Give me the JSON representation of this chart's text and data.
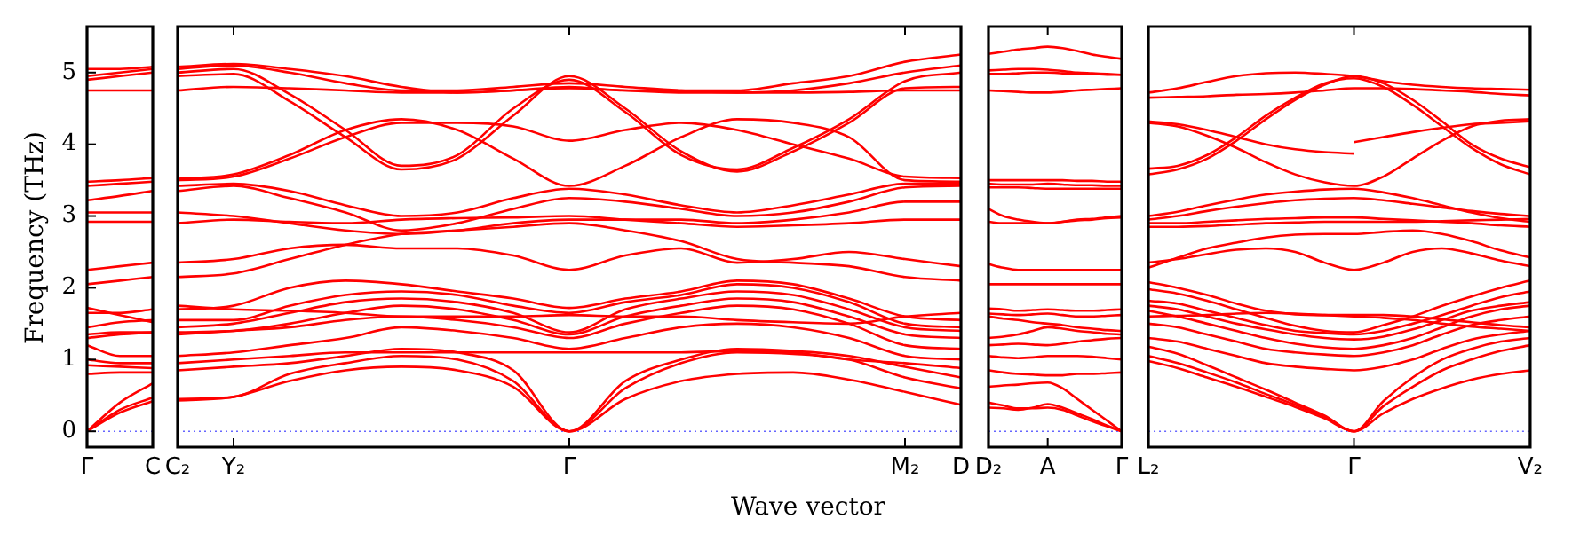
{
  "chart_data": [
    {
      "type": "line",
      "ylabel": "Frequency (THz)",
      "categories": [
        "Γ",
        null,
        "C"
      ],
      "ylim": [
        -0.22,
        5.64
      ],
      "yticks": [
        0,
        1,
        2,
        3,
        4,
        5
      ],
      "ref_lines": [
        {
          "axis": "y",
          "value": 0,
          "color": "#6666ff",
          "line_style": "dotted"
        }
      ],
      "series": [
        {
          "color": "#ff0000",
          "values": [
            0,
            0.3,
            0.47
          ]
        },
        {
          "color": "#ff0000",
          "values": [
            0,
            0.26,
            0.42
          ]
        },
        {
          "color": "#ff0000",
          "values": [
            0,
            0.4,
            0.67
          ]
        },
        {
          "color": "#ff0000",
          "values": [
            0.8,
            0.82,
            0.82
          ]
        },
        {
          "color": "#ff0000",
          "values": [
            0.92,
            0.9,
            0.88
          ]
        },
        {
          "color": "#ff0000",
          "values": [
            1.0,
            0.95,
            0.95
          ]
        },
        {
          "color": "#ff0000",
          "values": [
            1.2,
            1.05,
            1.05
          ]
        },
        {
          "color": "#ff0000",
          "values": [
            1.3,
            1.35,
            1.38
          ]
        },
        {
          "color": "#ff0000",
          "values": [
            1.35,
            1.38,
            1.38
          ]
        },
        {
          "color": "#ff0000",
          "values": [
            1.45,
            1.52,
            1.55
          ]
        },
        {
          "color": "#ff0000",
          "values": [
            1.72,
            1.62,
            1.52
          ]
        },
        {
          "color": "#ff0000",
          "values": [
            1.65,
            1.65,
            1.7
          ]
        },
        {
          "color": "#ff0000",
          "values": [
            2.05,
            2.1,
            2.15
          ]
        },
        {
          "color": "#ff0000",
          "values": [
            2.25,
            2.3,
            2.35
          ]
        },
        {
          "color": "#ff0000",
          "values": [
            2.92,
            2.92,
            2.92
          ]
        },
        {
          "color": "#ff0000",
          "values": [
            3.05,
            3.05,
            3.05
          ]
        },
        {
          "color": "#ff0000",
          "values": [
            3.22,
            3.28,
            3.35
          ]
        },
        {
          "color": "#ff0000",
          "values": [
            3.42,
            3.45,
            3.48
          ]
        },
        {
          "color": "#ff0000",
          "values": [
            3.48,
            3.5,
            3.53
          ]
        },
        {
          "color": "#ff0000",
          "values": [
            4.75,
            4.75,
            4.75
          ]
        },
        {
          "color": "#ff0000",
          "values": [
            4.9,
            4.95,
            5.0
          ]
        },
        {
          "color": "#ff0000",
          "values": [
            4.95,
            5.0,
            5.05
          ]
        },
        {
          "color": "#ff0000",
          "values": [
            5.05,
            5.05,
            5.08
          ]
        }
      ]
    },
    {
      "type": "line",
      "xlabel": "Wave vector",
      "categories": [
        "C₂",
        "Y₂",
        null,
        null,
        null,
        null,
        null,
        "Γ",
        null,
        null,
        null,
        null,
        null,
        "M₂",
        "D"
      ],
      "ylim": [
        -0.22,
        5.64
      ],
      "yticks": [
        0,
        1,
        2,
        3,
        4,
        5
      ],
      "tick_labels": "x",
      "ref_lines": [
        {
          "axis": "y",
          "value": 0,
          "color": "#6666ff",
          "line_style": "dotted"
        }
      ],
      "series": [
        {
          "color": "#ff0000",
          "values": [
            0.43,
            0.48,
            0.7,
            0.85,
            0.9,
            0.85,
            0.62,
            0,
            0.45,
            0.7,
            0.8,
            0.82,
            0.72,
            0.55,
            0.37
          ]
        },
        {
          "color": "#ff0000",
          "values": [
            0.45,
            0.48,
            0.8,
            0.95,
            1.05,
            1.0,
            0.7,
            0,
            0.6,
            0.95,
            1.1,
            1.08,
            1.0,
            0.75,
            0.6
          ]
        },
        {
          "color": "#ff0000",
          "values": [
            0.85,
            0.9,
            0.95,
            1.05,
            1.15,
            1.1,
            0.85,
            0,
            0.7,
            1.0,
            1.15,
            1.12,
            1.05,
            0.9,
            0.75
          ]
        },
        {
          "color": "#ff0000",
          "values": [
            0.95,
            1.0,
            1.05,
            1.1,
            1.1,
            1.1,
            1.1,
            1.1,
            1.1,
            1.1,
            1.12,
            1.1,
            1.0,
            0.95,
            0.88
          ]
        },
        {
          "color": "#ff0000",
          "values": [
            1.05,
            1.1,
            1.2,
            1.3,
            1.45,
            1.4,
            1.3,
            1.15,
            1.3,
            1.45,
            1.5,
            1.45,
            1.3,
            1.05,
            1.0
          ]
        },
        {
          "color": "#ff0000",
          "values": [
            1.35,
            1.4,
            1.45,
            1.55,
            1.6,
            1.55,
            1.45,
            1.3,
            1.5,
            1.65,
            1.75,
            1.7,
            1.5,
            1.2,
            1.15
          ]
        },
        {
          "color": "#ff0000",
          "values": [
            1.38,
            1.4,
            1.5,
            1.65,
            1.75,
            1.7,
            1.55,
            1.35,
            1.6,
            1.75,
            1.85,
            1.8,
            1.6,
            1.35,
            1.3
          ]
        },
        {
          "color": "#ff0000",
          "values": [
            1.45,
            1.5,
            1.65,
            1.8,
            1.85,
            1.8,
            1.65,
            1.38,
            1.7,
            1.85,
            1.95,
            1.9,
            1.7,
            1.45,
            1.4
          ]
        },
        {
          "color": "#ff0000",
          "values": [
            1.55,
            1.55,
            1.75,
            1.9,
            1.95,
            1.9,
            1.75,
            1.65,
            1.8,
            1.9,
            2.05,
            2.0,
            1.8,
            1.5,
            1.45
          ]
        },
        {
          "color": "#ff0000",
          "values": [
            1.7,
            1.75,
            2.0,
            2.1,
            2.05,
            1.95,
            1.85,
            1.72,
            1.85,
            1.95,
            2.1,
            2.05,
            1.85,
            1.6,
            1.55
          ]
        },
        {
          "color": "#ff0000",
          "values": [
            1.75,
            1.7,
            1.68,
            1.65,
            1.6,
            1.6,
            1.6,
            1.62,
            1.6,
            1.6,
            1.55,
            1.52,
            1.5,
            1.6,
            1.65
          ]
        },
        {
          "color": "#ff0000",
          "values": [
            2.15,
            2.2,
            2.4,
            2.6,
            2.75,
            2.8,
            2.85,
            2.9,
            2.8,
            2.65,
            2.4,
            2.35,
            2.3,
            2.15,
            2.1
          ]
        },
        {
          "color": "#ff0000",
          "values": [
            2.35,
            2.4,
            2.55,
            2.6,
            2.55,
            2.55,
            2.45,
            2.25,
            2.45,
            2.55,
            2.35,
            2.4,
            2.5,
            2.4,
            2.3
          ]
        },
        {
          "color": "#ff0000",
          "values": [
            2.9,
            2.95,
            2.92,
            2.9,
            2.95,
            2.97,
            2.98,
            3.0,
            2.95,
            2.9,
            2.85,
            2.87,
            2.9,
            2.95,
            2.95
          ]
        },
        {
          "color": "#ff0000",
          "values": [
            3.05,
            3.0,
            2.9,
            2.8,
            2.75,
            2.8,
            2.9,
            2.95,
            2.95,
            2.95,
            2.9,
            2.95,
            3.05,
            3.2,
            3.2
          ]
        },
        {
          "color": "#ff0000",
          "values": [
            3.35,
            3.42,
            3.25,
            3.05,
            2.8,
            2.9,
            3.1,
            3.25,
            3.2,
            3.1,
            3.0,
            3.05,
            3.2,
            3.4,
            3.42
          ]
        },
        {
          "color": "#ff0000",
          "values": [
            3.42,
            3.45,
            3.35,
            3.15,
            3.0,
            3.05,
            3.25,
            3.38,
            3.3,
            3.15,
            3.05,
            3.15,
            3.3,
            3.45,
            3.45
          ]
        },
        {
          "color": "#ff0000",
          "values": [
            3.5,
            3.55,
            3.8,
            4.1,
            4.3,
            4.3,
            4.25,
            4.05,
            4.2,
            4.3,
            4.2,
            4.0,
            3.8,
            3.55,
            3.53
          ]
        },
        {
          "color": "#ff0000",
          "values": [
            3.52,
            3.58,
            3.85,
            4.2,
            4.35,
            4.2,
            3.8,
            3.42,
            3.7,
            4.1,
            4.35,
            4.3,
            4.1,
            3.5,
            3.48
          ]
        },
        {
          "color": "#ff0000",
          "values": [
            4.95,
            4.98,
            4.6,
            4.1,
            3.65,
            3.8,
            4.4,
            4.95,
            4.5,
            3.9,
            3.62,
            3.9,
            4.3,
            4.78,
            4.8
          ]
        },
        {
          "color": "#ff0000",
          "values": [
            5.0,
            5.05,
            4.7,
            4.2,
            3.7,
            3.85,
            4.5,
            4.9,
            4.45,
            3.85,
            3.65,
            3.95,
            4.35,
            4.88,
            5.0
          ]
        },
        {
          "color": "#ff0000",
          "values": [
            5.05,
            5.1,
            5.0,
            4.85,
            4.75,
            4.75,
            4.8,
            4.85,
            4.8,
            4.75,
            4.72,
            4.75,
            4.85,
            5.0,
            5.1
          ]
        },
        {
          "color": "#ff0000",
          "values": [
            5.08,
            5.12,
            5.05,
            4.95,
            4.8,
            4.72,
            4.75,
            4.8,
            4.75,
            4.75,
            4.75,
            4.85,
            4.95,
            5.15,
            5.25
          ]
        },
        {
          "color": "#ff0000",
          "values": [
            4.75,
            4.8,
            4.78,
            4.75,
            4.72,
            4.72,
            4.75,
            4.78,
            4.75,
            4.72,
            4.72,
            4.72,
            4.73,
            4.75,
            4.75
          ]
        }
      ]
    },
    {
      "type": "line",
      "categories": [
        "D₂",
        null,
        null,
        null,
        "A",
        null,
        null,
        null,
        null,
        "Γ"
      ],
      "ylim": [
        -0.22,
        5.64
      ],
      "yticks": [
        0,
        1,
        2,
        3,
        4,
        5
      ],
      "tick_labels": "x",
      "ref_lines": [
        {
          "axis": "y",
          "value": 0,
          "color": "#6666ff",
          "line_style": "dotted"
        }
      ],
      "series": [
        {
          "color": "#ff0000",
          "values": [
            0.33,
            0.32,
            0.3,
            0.33,
            0.38,
            0.33,
            0.25,
            0.17,
            0.08,
            0
          ]
        },
        {
          "color": "#ff0000",
          "values": [
            0.4,
            0.36,
            0.32,
            0.32,
            0.33,
            0.3,
            0.22,
            0.14,
            0.07,
            0
          ]
        },
        {
          "color": "#ff0000",
          "values": [
            0.62,
            0.64,
            0.65,
            0.67,
            0.68,
            0.6,
            0.45,
            0.3,
            0.15,
            0
          ]
        },
        {
          "color": "#ff0000",
          "values": [
            0.85,
            0.82,
            0.8,
            0.79,
            0.78,
            0.78,
            0.8,
            0.8,
            0.81,
            0.82
          ]
        },
        {
          "color": "#ff0000",
          "values": [
            1.05,
            1.03,
            1.02,
            1.03,
            1.05,
            1.05,
            1.05,
            1.04,
            1.02,
            1.0
          ]
        },
        {
          "color": "#ff0000",
          "values": [
            1.2,
            1.21,
            1.22,
            1.21,
            1.2,
            1.22,
            1.25,
            1.27,
            1.29,
            1.3
          ]
        },
        {
          "color": "#ff0000",
          "values": [
            1.3,
            1.32,
            1.35,
            1.4,
            1.45,
            1.43,
            1.4,
            1.38,
            1.36,
            1.35
          ]
        },
        {
          "color": "#ff0000",
          "values": [
            1.6,
            1.57,
            1.55,
            1.52,
            1.5,
            1.48,
            1.45,
            1.43,
            1.41,
            1.4
          ]
        },
        {
          "color": "#ff0000",
          "values": [
            1.64,
            1.63,
            1.62,
            1.63,
            1.64,
            1.62,
            1.6,
            1.6,
            1.61,
            1.62
          ]
        },
        {
          "color": "#ff0000",
          "values": [
            1.71,
            1.7,
            1.68,
            1.69,
            1.7,
            1.69,
            1.68,
            1.68,
            1.69,
            1.7
          ]
        },
        {
          "color": "#ff0000",
          "values": [
            2.05,
            2.05,
            2.05,
            2.05,
            2.05,
            2.05,
            2.05,
            2.05,
            2.05,
            2.05
          ]
        },
        {
          "color": "#ff0000",
          "values": [
            2.33,
            2.28,
            2.25,
            2.25,
            2.25,
            2.25,
            2.25,
            2.25,
            2.25,
            2.25
          ]
        },
        {
          "color": "#ff0000",
          "values": [
            2.92,
            2.9,
            2.9,
            2.9,
            2.9,
            2.92,
            2.94,
            2.95,
            2.97,
            2.98
          ]
        },
        {
          "color": "#ff0000",
          "values": [
            3.1,
            3.0,
            2.95,
            2.92,
            2.9,
            2.92,
            2.95,
            2.96,
            2.98,
            3.0
          ]
        },
        {
          "color": "#ff0000",
          "values": [
            3.4,
            3.4,
            3.4,
            3.39,
            3.38,
            3.38,
            3.38,
            3.38,
            3.38,
            3.38
          ]
        },
        {
          "color": "#ff0000",
          "values": [
            3.45,
            3.44,
            3.44,
            3.44,
            3.45,
            3.44,
            3.43,
            3.43,
            3.42,
            3.42
          ]
        },
        {
          "color": "#ff0000",
          "values": [
            3.5,
            3.5,
            3.5,
            3.5,
            3.5,
            3.5,
            3.49,
            3.49,
            3.48,
            3.48
          ]
        },
        {
          "color": "#ff0000",
          "values": [
            4.75,
            4.74,
            4.73,
            4.72,
            4.72,
            4.73,
            4.75,
            4.76,
            4.77,
            4.78
          ]
        },
        {
          "color": "#ff0000",
          "values": [
            4.98,
            4.98,
            4.99,
            5.0,
            5.0,
            4.99,
            4.98,
            4.98,
            4.97,
            4.97
          ]
        },
        {
          "color": "#ff0000",
          "values": [
            5.03,
            5.04,
            5.05,
            5.05,
            5.04,
            5.02,
            5.0,
            4.99,
            4.98,
            4.97
          ]
        },
        {
          "color": "#ff0000",
          "values": [
            5.26,
            5.29,
            5.32,
            5.34,
            5.36,
            5.34,
            5.3,
            5.25,
            5.22,
            5.19
          ]
        }
      ]
    },
    {
      "type": "line",
      "categories": [
        "L₂",
        null,
        null,
        null,
        null,
        null,
        null,
        "Γ",
        null,
        null,
        null,
        null,
        null,
        "V₂"
      ],
      "ylim": [
        -0.22,
        5.64
      ],
      "yticks": [
        0,
        1,
        2,
        3,
        4,
        5
      ],
      "tick_labels": "x",
      "ref_lines": [
        {
          "axis": "y",
          "value": 0,
          "color": "#6666ff",
          "line_style": "dotted"
        }
      ],
      "series": [
        {
          "color": "#ff0000",
          "values": [
            0.98,
            0.88,
            0.75,
            0.62,
            0.48,
            0.34,
            0.18,
            0,
            0.25,
            0.45,
            0.6,
            0.72,
            0.8,
            0.85
          ]
        },
        {
          "color": "#ff0000",
          "values": [
            1.05,
            0.95,
            0.82,
            0.68,
            0.52,
            0.37,
            0.2,
            0,
            0.35,
            0.62,
            0.85,
            1.0,
            1.12,
            1.2
          ]
        },
        {
          "color": "#ff0000",
          "values": [
            1.18,
            1.08,
            0.92,
            0.75,
            0.58,
            0.4,
            0.22,
            0,
            0.42,
            0.75,
            1.0,
            1.15,
            1.25,
            1.3
          ]
        },
        {
          "color": "#ff0000",
          "values": [
            1.3,
            1.25,
            1.15,
            1.05,
            0.95,
            0.9,
            0.87,
            0.85,
            0.9,
            1.0,
            1.15,
            1.28,
            1.35,
            1.4
          ]
        },
        {
          "color": "#ff0000",
          "values": [
            1.5,
            1.45,
            1.35,
            1.25,
            1.15,
            1.1,
            1.07,
            1.05,
            1.1,
            1.2,
            1.35,
            1.48,
            1.55,
            1.6
          ]
        },
        {
          "color": "#ff0000",
          "values": [
            1.68,
            1.6,
            1.5,
            1.4,
            1.3,
            1.22,
            1.17,
            1.15,
            1.2,
            1.3,
            1.45,
            1.6,
            1.7,
            1.75
          ]
        },
        {
          "color": "#ff0000",
          "values": [
            1.75,
            1.7,
            1.6,
            1.5,
            1.42,
            1.35,
            1.3,
            1.28,
            1.32,
            1.42,
            1.55,
            1.68,
            1.75,
            1.8
          ]
        },
        {
          "color": "#ff0000",
          "values": [
            1.82,
            1.78,
            1.68,
            1.58,
            1.48,
            1.4,
            1.37,
            1.35,
            1.4,
            1.5,
            1.62,
            1.75,
            1.87,
            1.95
          ]
        },
        {
          "color": "#ff0000",
          "values": [
            1.98,
            1.92,
            1.82,
            1.7,
            1.58,
            1.47,
            1.4,
            1.38,
            1.48,
            1.6,
            1.75,
            1.88,
            2.0,
            2.1
          ]
        },
        {
          "color": "#ff0000",
          "values": [
            2.08,
            2.0,
            1.9,
            1.78,
            1.68,
            1.63,
            1.62,
            1.62,
            1.62,
            1.6,
            1.56,
            1.52,
            1.48,
            1.45
          ]
        },
        {
          "color": "#ff0000",
          "values": [
            1.6,
            1.61,
            1.62,
            1.64,
            1.65,
            1.64,
            1.62,
            1.6,
            1.58,
            1.55,
            1.5,
            1.46,
            1.43,
            1.4
          ]
        },
        {
          "color": "#ff0000",
          "values": [
            2.35,
            2.4,
            2.47,
            2.53,
            2.55,
            2.5,
            2.35,
            2.25,
            2.35,
            2.5,
            2.55,
            2.48,
            2.38,
            2.3
          ]
        },
        {
          "color": "#ff0000",
          "values": [
            2.28,
            2.42,
            2.55,
            2.63,
            2.7,
            2.74,
            2.75,
            2.75,
            2.78,
            2.8,
            2.75,
            2.65,
            2.52,
            2.42
          ]
        },
        {
          "color": "#ff0000",
          "values": [
            2.85,
            2.85,
            2.86,
            2.88,
            2.9,
            2.91,
            2.92,
            2.92,
            2.92,
            2.92,
            2.93,
            2.94,
            2.95,
            2.96
          ]
        },
        {
          "color": "#ff0000",
          "values": [
            2.9,
            2.9,
            2.92,
            2.94,
            2.96,
            2.97,
            2.98,
            2.98,
            2.96,
            2.94,
            2.92,
            2.9,
            2.87,
            2.85
          ]
        },
        {
          "color": "#ff0000",
          "values": [
            2.95,
            3.0,
            3.07,
            3.13,
            3.18,
            3.22,
            3.24,
            3.25,
            3.22,
            3.17,
            3.12,
            3.07,
            3.03,
            3.0
          ]
        },
        {
          "color": "#ff0000",
          "values": [
            3.0,
            3.06,
            3.15,
            3.23,
            3.3,
            3.34,
            3.37,
            3.38,
            3.33,
            3.25,
            3.15,
            3.05,
            2.97,
            2.92
          ]
        },
        {
          "color": "#ff0000",
          "values": [
            4.3,
            4.25,
            4.12,
            3.95,
            3.75,
            3.58,
            3.47,
            3.42,
            3.55,
            3.8,
            4.05,
            4.25,
            4.33,
            4.35
          ]
        },
        {
          "color": "#ff0000",
          "values": [
            4.32,
            4.28,
            4.2,
            4.1,
            4.0,
            3.93,
            3.89,
            3.87,
            null,
            null,
            null,
            null,
            null,
            null
          ]
        },
        {
          "color": "#ff0000",
          "values": [
            null,
            null,
            null,
            null,
            null,
            null,
            null,
            4.03,
            4.1,
            4.17,
            4.23,
            4.28,
            4.3,
            4.32
          ]
        },
        {
          "color": "#ff0000",
          "values": [
            3.66,
            3.7,
            3.85,
            4.1,
            4.4,
            4.65,
            4.85,
            4.92,
            4.8,
            4.55,
            4.25,
            3.95,
            3.72,
            3.58
          ]
        },
        {
          "color": "#ff0000",
          "values": [
            3.58,
            3.65,
            3.8,
            4.05,
            4.35,
            4.62,
            4.83,
            4.95,
            4.85,
            4.62,
            4.32,
            4.0,
            3.8,
            3.68
          ]
        },
        {
          "color": "#ff0000",
          "values": [
            4.65,
            4.66,
            4.67,
            4.69,
            4.7,
            4.72,
            4.75,
            4.78,
            4.78,
            4.77,
            4.75,
            4.73,
            4.7,
            4.68
          ]
        },
        {
          "color": "#ff0000",
          "values": [
            4.72,
            4.78,
            4.87,
            4.95,
            4.99,
            5.0,
            4.98,
            4.95,
            4.88,
            4.83,
            4.8,
            4.78,
            4.77,
            4.76
          ]
        }
      ]
    }
  ]
}
